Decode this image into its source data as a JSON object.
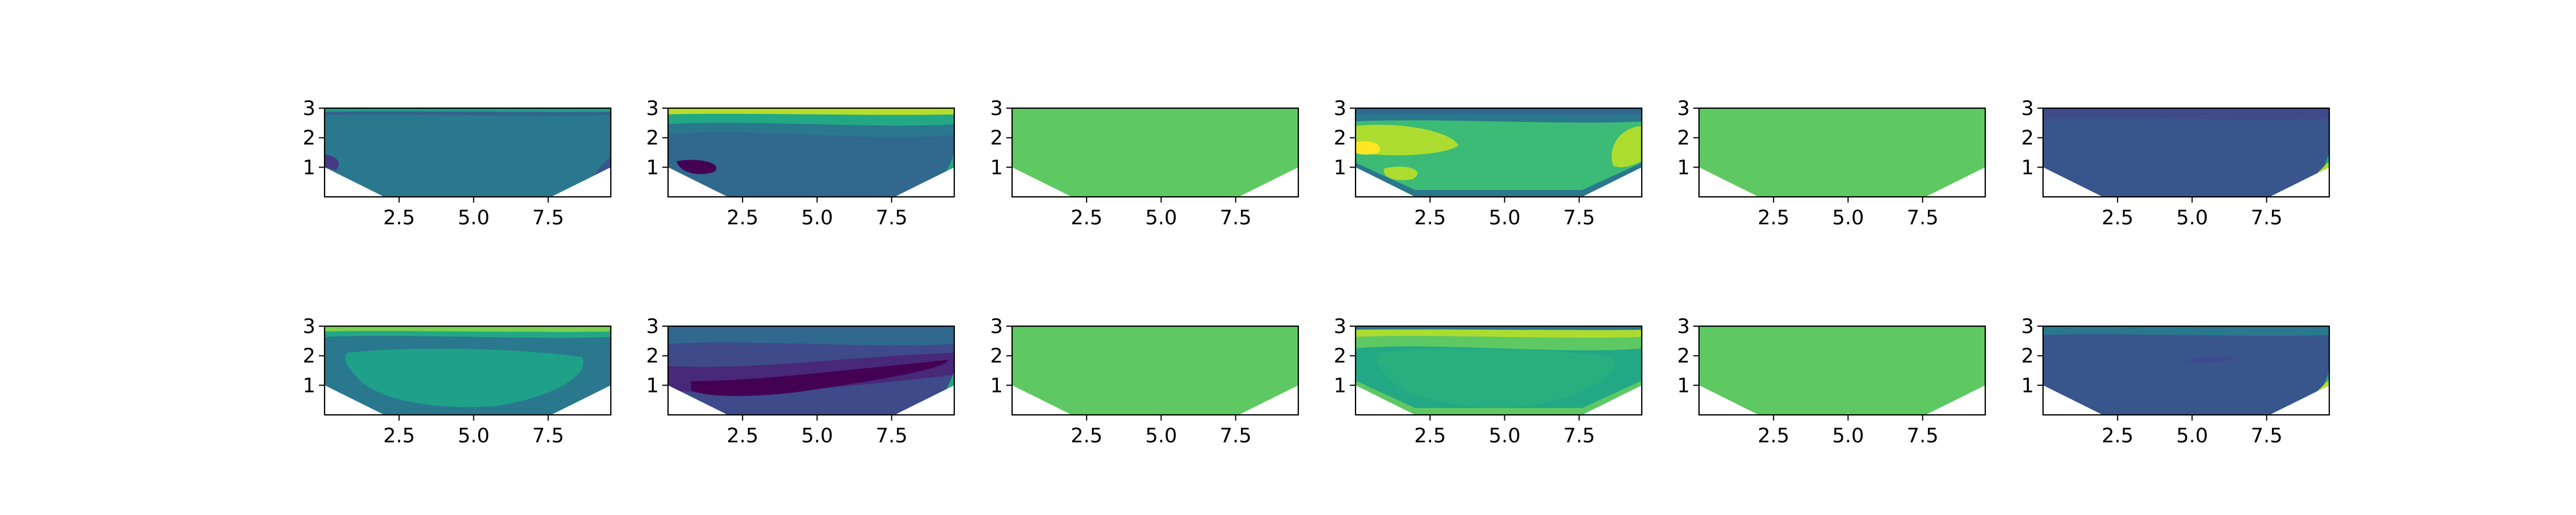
{
  "chart_data": [
    {
      "type": "contour",
      "colormap": "viridis",
      "x_ticks": [
        "2.5",
        "5.0",
        "7.5"
      ],
      "y_ticks": [
        "1",
        "2",
        "3"
      ],
      "xlim": [
        0,
        9.6
      ],
      "ylim": [
        0,
        3
      ],
      "fill": "#2a788e",
      "layers": [
        {
          "color": "#33638d",
          "region": "band-top",
          "h": 0.08
        },
        {
          "color": "#1fa088",
          "region": "band-top",
          "h": 0.04
        },
        {
          "color": "#39568c",
          "region": "right-corner"
        },
        {
          "color": "#443983",
          "region": "left-corner"
        }
      ]
    },
    {
      "type": "contour",
      "colormap": "viridis",
      "x_ticks": [
        "2.5",
        "5.0",
        "7.5"
      ],
      "y_ticks": [
        "1",
        "2",
        "3"
      ],
      "xlim": [
        0,
        9.6
      ],
      "ylim": [
        0,
        3
      ],
      "fill": "#31688e",
      "layers": [
        {
          "color": "#2a788e",
          "region": "band-top",
          "h": 0.3
        },
        {
          "color": "#22a884",
          "region": "band-top",
          "h": 0.18
        },
        {
          "color": "#b5de2b",
          "region": "band-top",
          "h": 0.07
        },
        {
          "color": "#22a884",
          "region": "bottom-right"
        },
        {
          "color": "#440154",
          "region": "blob-left"
        }
      ]
    },
    {
      "type": "contour",
      "colormap": "viridis",
      "x_ticks": [
        "2.5",
        "5.0",
        "7.5"
      ],
      "y_ticks": [
        "1",
        "2",
        "3"
      ],
      "xlim": [
        0,
        9.6
      ],
      "ylim": [
        0,
        3
      ],
      "fill": "#5ec962",
      "layers": []
    },
    {
      "type": "contour",
      "colormap": "viridis",
      "x_ticks": [
        "2.5",
        "5.0",
        "7.5"
      ],
      "y_ticks": [
        "1",
        "2",
        "3"
      ],
      "xlim": [
        0,
        9.6
      ],
      "ylim": [
        0,
        3
      ],
      "fill": "#3bbb75",
      "layers": [
        {
          "color": "#2a788e",
          "region": "band-top",
          "h": 0.15
        },
        {
          "color": "#31688e",
          "region": "band-top",
          "h": 0.07
        },
        {
          "color": "#addc30",
          "region": "blob-upper-left"
        },
        {
          "color": "#fde725",
          "region": "blob-yellow"
        },
        {
          "color": "#addc30",
          "region": "blob-right"
        },
        {
          "color": "#2a788e",
          "region": "band-bottom"
        }
      ]
    },
    {
      "type": "contour",
      "colormap": "viridis",
      "x_ticks": [
        "2.5",
        "5.0",
        "7.5"
      ],
      "y_ticks": [
        "1",
        "2",
        "3"
      ],
      "xlim": [
        0,
        9.6
      ],
      "ylim": [
        0,
        3
      ],
      "fill": "#5ec962",
      "layers": []
    },
    {
      "type": "contour",
      "colormap": "viridis",
      "x_ticks": [
        "2.5",
        "5.0",
        "7.5"
      ],
      "y_ticks": [
        "1",
        "2",
        "3"
      ],
      "xlim": [
        0,
        9.6
      ],
      "ylim": [
        0,
        3
      ],
      "fill": "#39568c",
      "layers": [
        {
          "color": "#3e4a89",
          "region": "band-top",
          "h": 0.12
        },
        {
          "color": "#22a884",
          "region": "bottom-right"
        },
        {
          "color": "#b5de2b",
          "region": "bottom-right-inner"
        }
      ]
    },
    {
      "type": "contour",
      "colormap": "viridis",
      "x_ticks": [
        "2.5",
        "5.0",
        "7.5"
      ],
      "y_ticks": [
        "1",
        "2",
        "3"
      ],
      "xlim": [
        0,
        9.6
      ],
      "ylim": [
        0,
        3
      ],
      "fill": "#2a788e",
      "layers": [
        {
          "color": "#1fa088",
          "region": "center-blob"
        },
        {
          "color": "#22a884",
          "region": "band-top",
          "h": 0.12
        },
        {
          "color": "#7ad151",
          "region": "band-top",
          "h": 0.06
        }
      ]
    },
    {
      "type": "contour",
      "colormap": "viridis",
      "x_ticks": [
        "2.5",
        "5.0",
        "7.5"
      ],
      "y_ticks": [
        "1",
        "2",
        "3"
      ],
      "xlim": [
        0,
        9.6
      ],
      "ylim": [
        0,
        3
      ],
      "fill": "#3e4a89",
      "layers": [
        {
          "color": "#31688e",
          "region": "band-top",
          "h": 0.2
        },
        {
          "color": "#482878",
          "region": "band-mid"
        },
        {
          "color": "#440154",
          "region": "band-low"
        },
        {
          "color": "#22a884",
          "region": "bottom-right"
        }
      ]
    },
    {
      "type": "contour",
      "colormap": "viridis",
      "x_ticks": [
        "2.5",
        "5.0",
        "7.5"
      ],
      "y_ticks": [
        "1",
        "2",
        "3"
      ],
      "xlim": [
        0,
        9.6
      ],
      "ylim": [
        0,
        3
      ],
      "fill": "#5ec962",
      "layers": []
    },
    {
      "type": "contour",
      "colormap": "viridis",
      "x_ticks": [
        "2.5",
        "5.0",
        "7.5"
      ],
      "y_ticks": [
        "1",
        "2",
        "3"
      ],
      "xlim": [
        0,
        9.6
      ],
      "ylim": [
        0,
        3
      ],
      "fill": "#22a884",
      "layers": [
        {
          "color": "#29af7f",
          "region": "center-blob"
        },
        {
          "color": "#5ec962",
          "region": "band-top",
          "h": 0.25
        },
        {
          "color": "#addc30",
          "region": "band-top",
          "h": 0.12
        },
        {
          "color": "#2a788e",
          "region": "band-top",
          "h": 0.04
        },
        {
          "color": "#5ec962",
          "region": "band-bottom"
        }
      ]
    },
    {
      "type": "contour",
      "colormap": "viridis",
      "x_ticks": [
        "2.5",
        "5.0",
        "7.5"
      ],
      "y_ticks": [
        "1",
        "2",
        "3"
      ],
      "xlim": [
        0,
        9.6
      ],
      "ylim": [
        0,
        3
      ],
      "fill": "#5ec962",
      "layers": []
    },
    {
      "type": "contour",
      "colormap": "viridis",
      "x_ticks": [
        "2.5",
        "5.0",
        "7.5"
      ],
      "y_ticks": [
        "1",
        "2",
        "3"
      ],
      "xlim": [
        0,
        9.6
      ],
      "ylim": [
        0,
        3
      ],
      "fill": "#39568c",
      "layers": [
        {
          "color": "#2a788e",
          "region": "band-top",
          "h": 0.1
        },
        {
          "color": "#22a884",
          "region": "bottom-right"
        },
        {
          "color": "#b5de2b",
          "region": "bottom-right-inner"
        },
        {
          "color": "#3e4a89",
          "region": "small-blob"
        }
      ]
    }
  ]
}
